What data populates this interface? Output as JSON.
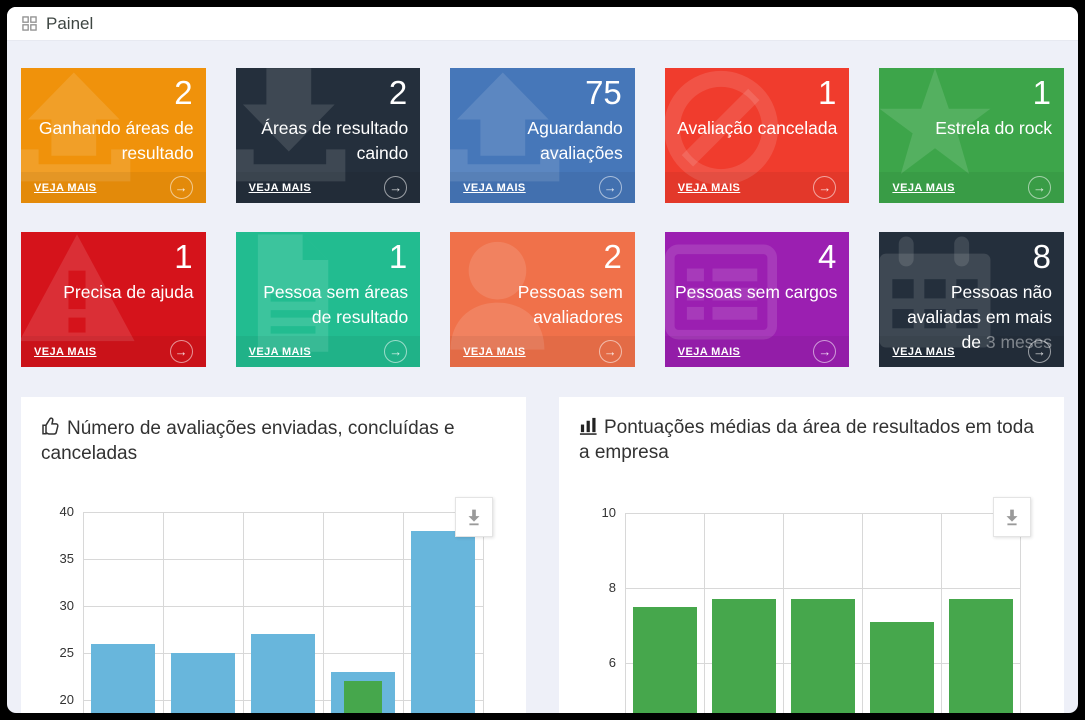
{
  "header": {
    "title": "Painel",
    "icon": "dashboard-grid-icon"
  },
  "icons": {
    "tile_link": "arrow-right-circle-icon",
    "export": "download-icon"
  },
  "tiles": [
    {
      "value": "2",
      "label": "Ganhando áreas de resultado",
      "link_label": "VEJA MAIS",
      "color": "#f0920b",
      "icon": "upload-arrow-icon"
    },
    {
      "value": "2",
      "label": "Áreas de resultado caindo",
      "link_label": "VEJA MAIS",
      "color": "#242f3c",
      "icon": "download-arrow-icon"
    },
    {
      "value": "75",
      "label": "Aguardando avaliações",
      "link_label": "VEJA MAIS",
      "color": "#4677b9",
      "icon": "upload-arrow-icon"
    },
    {
      "value": "1",
      "label": "Avaliação cancelada",
      "link_label": "VEJA MAIS",
      "color": "#f03c2d",
      "icon": "ban-icon"
    },
    {
      "value": "1",
      "label": "Estrela do rock",
      "link_label": "VEJA MAIS",
      "color": "#3da54a",
      "icon": "star-icon"
    },
    {
      "value": "1",
      "label": "Precisa de ajuda",
      "link_label": "VEJA MAIS",
      "color": "#d5131b",
      "icon": "warning-triangle-icon"
    },
    {
      "value": "1",
      "label": "Pessoa sem áreas de resultado",
      "link_label": "VEJA MAIS",
      "color": "#22bc90",
      "icon": "file-icon"
    },
    {
      "value": "2",
      "label": "Pessoas sem avaliadores",
      "link_label": "VEJA MAIS",
      "color": "#f0714a",
      "icon": "person-icon"
    },
    {
      "value": "4",
      "label": "Pessoas sem cargos",
      "link_label": "VEJA MAIS",
      "color": "#9b1fb1",
      "icon": "table-list-icon"
    },
    {
      "value": "8",
      "label": "Pessoas não avaliadas em mais de",
      "label_muted": "3 meses",
      "link_label": "VEJA MAIS",
      "color": "#242f3c",
      "icon": "calendar-icon"
    }
  ],
  "chart_data": [
    {
      "type": "bar",
      "title": "Número de avaliações enviadas, concluídas e canceladas",
      "title_icon": "thumbs-up-icon",
      "categories": [
        "",
        "",
        "",
        "",
        ""
      ],
      "series": [
        {
          "color": "#68b6dc",
          "values": [
            26,
            25,
            27,
            23,
            38
          ]
        },
        {
          "color": "#46a74c",
          "values": [
            null,
            null,
            null,
            22,
            null
          ]
        }
      ],
      "yticks": [
        40,
        35,
        30,
        25,
        20
      ],
      "ylim_visible": [
        20,
        40
      ],
      "grid": true,
      "legend": "none",
      "export_button": "download-icon"
    },
    {
      "type": "bar",
      "title": "Pontuações médias da área de resultados em toda a empresa",
      "title_icon": "bar-chart-icon",
      "categories": [
        "",
        "",
        "",
        "",
        ""
      ],
      "series": [
        {
          "color": "#46a74c",
          "values": [
            7.5,
            7.7,
            7.7,
            7.1,
            7.7
          ]
        }
      ],
      "yticks": [
        10,
        8,
        6
      ],
      "ylim_visible": [
        6,
        10
      ],
      "grid": true,
      "legend": "none",
      "export_button": "download-icon"
    }
  ]
}
